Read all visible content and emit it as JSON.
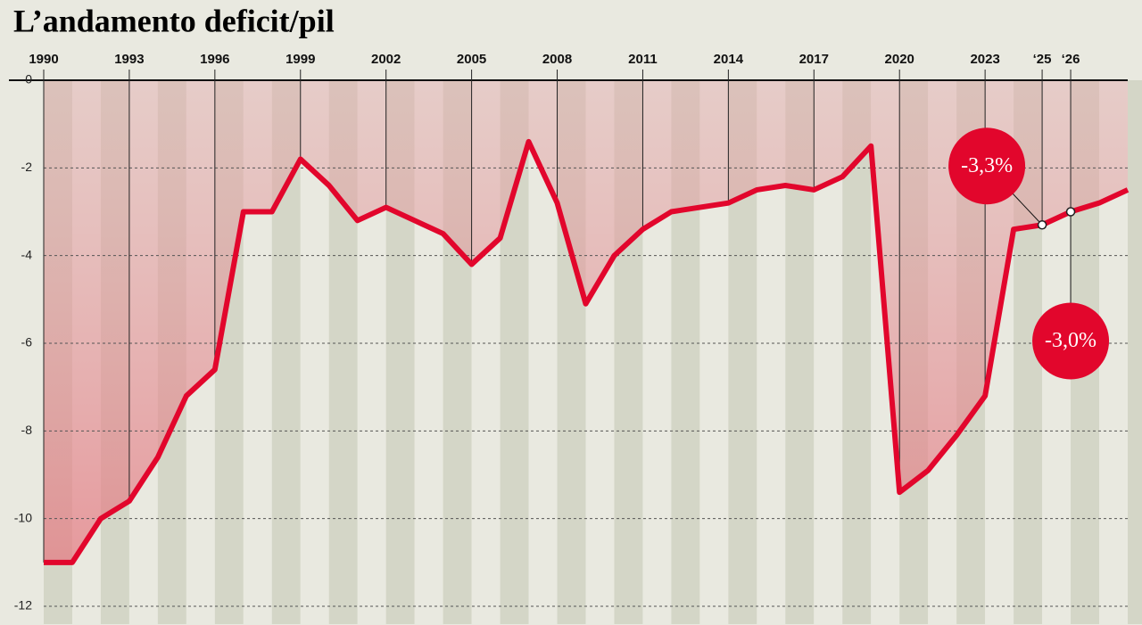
{
  "chart_data": {
    "type": "line",
    "title": "L’andamento deficit/pil",
    "x": [
      1990,
      1991,
      1992,
      1993,
      1994,
      1995,
      1996,
      1997,
      1998,
      1999,
      2000,
      2001,
      2002,
      2003,
      2004,
      2005,
      2006,
      2007,
      2008,
      2009,
      2010,
      2011,
      2012,
      2013,
      2014,
      2015,
      2016,
      2017,
      2018,
      2019,
      2020,
      2021,
      2022,
      2023,
      2024,
      2025,
      2026,
      2027,
      2028
    ],
    "series": [
      {
        "color": "#e2062c",
        "values": [
          -11.0,
          -11.0,
          -10.0,
          -9.6,
          -8.6,
          -7.2,
          -6.6,
          -3.0,
          -3.0,
          -1.8,
          -2.4,
          -3.2,
          -2.9,
          -3.2,
          -3.5,
          -4.2,
          -3.6,
          -1.4,
          -2.8,
          -5.1,
          -4.0,
          -3.4,
          -3.0,
          -2.9,
          -2.8,
          -2.5,
          -2.4,
          -2.5,
          -2.2,
          -1.5,
          -9.4,
          -8.9,
          -8.1,
          -7.2,
          -3.4,
          -3.3,
          -3.0,
          -2.8,
          -2.5
        ],
        "value_labels": [
          null,
          null,
          null,
          null,
          null,
          null,
          null,
          null,
          null,
          null,
          null,
          null,
          null,
          null,
          null,
          null,
          null,
          null,
          null,
          null,
          null,
          null,
          null,
          null,
          null,
          null,
          null,
          null,
          null,
          null,
          null,
          null,
          null,
          null,
          null,
          "-3,3%",
          "-3,0%",
          null,
          null
        ]
      }
    ],
    "xlim": [
      1990,
      2028
    ],
    "xticks": [
      1990,
      1993,
      1996,
      1999,
      2002,
      2005,
      2008,
      2011,
      2014,
      2017,
      2020,
      2023,
      {
        "value": 2025,
        "label": "‘25"
      },
      {
        "value": 2026,
        "label": "‘26"
      }
    ],
    "ylim": [
      -12,
      0
    ],
    "yticks": [
      0,
      -2,
      -4,
      -6,
      -8,
      -10,
      -12
    ],
    "grid": true
  }
}
